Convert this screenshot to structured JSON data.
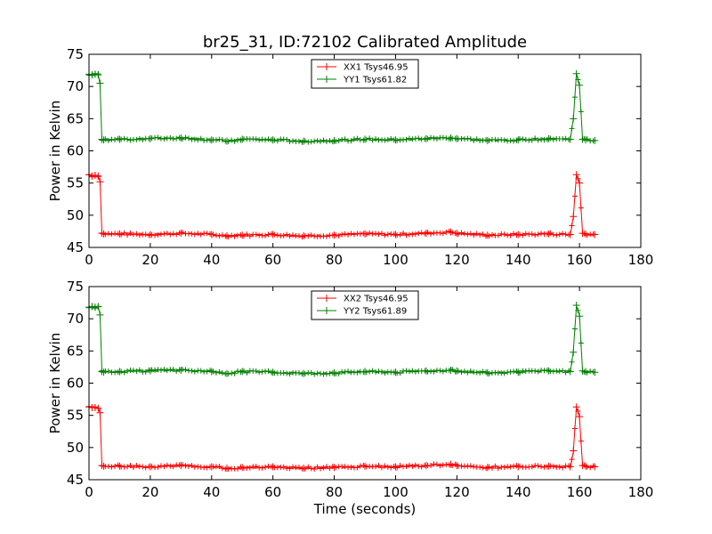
{
  "chart_data": [
    {
      "type": "line",
      "title": "br25_31, ID:72102 Calibrated Amplitude",
      "xlabel": "",
      "ylabel": "Power in Kelvin",
      "xlim": [
        0,
        180
      ],
      "ylim": [
        45,
        75
      ],
      "xticks": [
        "0",
        "20",
        "40",
        "60",
        "80",
        "100",
        "120",
        "140",
        "160",
        "180"
      ],
      "yticks": [
        "45",
        "50",
        "55",
        "60",
        "65",
        "70",
        "75"
      ],
      "grid": false,
      "legend_position": "top-center",
      "series": [
        {
          "name": "XX1 Tsys46.95",
          "color": "#ff0000",
          "x": [
            0,
            1,
            2,
            3,
            3.6,
            4.2,
            4.8,
            10,
            20,
            30,
            40,
            45,
            50,
            60,
            70,
            80,
            90,
            100,
            110,
            118,
            120,
            130,
            140,
            150,
            157,
            158,
            159,
            160,
            161,
            162,
            165
          ],
          "y": [
            56.3,
            56.1,
            56.2,
            56.1,
            55.2,
            47.2,
            47.1,
            47.1,
            47.0,
            47.2,
            47.0,
            46.8,
            46.9,
            47.0,
            46.8,
            46.9,
            47.1,
            47.0,
            47.2,
            47.4,
            47.2,
            46.9,
            47.0,
            47.1,
            47.0,
            49.8,
            56.3,
            55.0,
            47.2,
            47.1,
            47.0
          ]
        },
        {
          "name": "YY1 Tsys61.82",
          "color": "#008000",
          "x": [
            0,
            1,
            2,
            3,
            3.6,
            4.2,
            4.8,
            10,
            20,
            30,
            40,
            45,
            50,
            60,
            70,
            80,
            90,
            100,
            110,
            118,
            120,
            130,
            140,
            150,
            157,
            158,
            159,
            160,
            161,
            162,
            165
          ],
          "y": [
            71.9,
            71.8,
            71.9,
            71.8,
            70.5,
            61.8,
            61.7,
            61.8,
            61.9,
            62.0,
            61.7,
            61.5,
            61.8,
            61.7,
            61.5,
            61.6,
            61.8,
            61.7,
            61.9,
            62.0,
            61.9,
            61.6,
            61.7,
            61.9,
            61.8,
            65.0,
            72.0,
            70.2,
            61.8,
            61.7,
            61.6
          ]
        }
      ]
    },
    {
      "type": "line",
      "title": "",
      "xlabel": "Time (seconds)",
      "ylabel": "Power in Kelvin",
      "xlim": [
        0,
        180
      ],
      "ylim": [
        45,
        75
      ],
      "xticks": [
        "0",
        "20",
        "40",
        "60",
        "80",
        "100",
        "120",
        "140",
        "160",
        "180"
      ],
      "yticks": [
        "45",
        "50",
        "55",
        "60",
        "65",
        "70",
        "75"
      ],
      "grid": false,
      "legend_position": "top-center",
      "series": [
        {
          "name": "XX2 Tsys46.95",
          "color": "#ff0000",
          "x": [
            0,
            1,
            2,
            3,
            3.6,
            4.2,
            4.8,
            10,
            20,
            30,
            40,
            45,
            50,
            60,
            70,
            80,
            90,
            100,
            110,
            118,
            120,
            130,
            140,
            150,
            157,
            158,
            159,
            160,
            161,
            162,
            165
          ],
          "y": [
            56.3,
            56.2,
            56.2,
            56.1,
            55.4,
            47.2,
            47.1,
            47.1,
            47.0,
            47.2,
            47.0,
            46.8,
            46.9,
            47.0,
            46.8,
            46.9,
            47.1,
            47.0,
            47.2,
            47.4,
            47.2,
            46.9,
            47.0,
            47.1,
            47.0,
            49.5,
            56.3,
            54.8,
            47.2,
            47.1,
            47.0
          ]
        },
        {
          "name": "YY2 Tsys61.89",
          "color": "#008000",
          "x": [
            0,
            1,
            2,
            3,
            3.6,
            4.2,
            4.8,
            10,
            20,
            30,
            40,
            45,
            50,
            60,
            70,
            80,
            90,
            100,
            110,
            118,
            120,
            130,
            140,
            150,
            157,
            158,
            159,
            160,
            161,
            162,
            165
          ],
          "y": [
            71.8,
            71.9,
            71.8,
            71.9,
            70.6,
            61.8,
            61.7,
            61.8,
            61.9,
            62.0,
            61.8,
            61.5,
            61.8,
            61.7,
            61.5,
            61.6,
            61.8,
            61.7,
            61.9,
            62.0,
            61.9,
            61.6,
            61.7,
            61.9,
            61.8,
            64.8,
            72.1,
            70.4,
            61.9,
            61.8,
            61.7
          ]
        }
      ]
    }
  ]
}
